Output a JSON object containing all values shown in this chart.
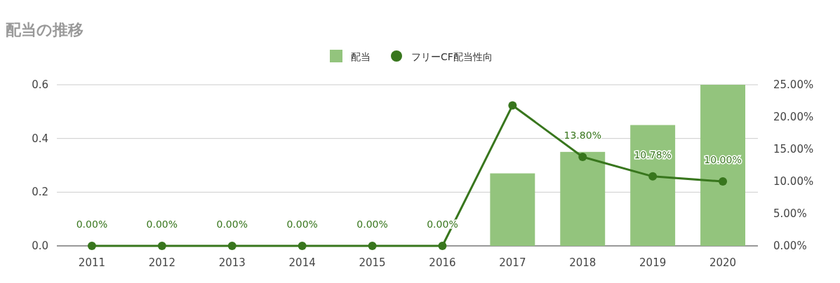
{
  "chart_data": {
    "type": "bar",
    "title": "配当の推移",
    "categories": [
      "2011",
      "2012",
      "2013",
      "2014",
      "2015",
      "2016",
      "2017",
      "2018",
      "2019",
      "2020"
    ],
    "series": [
      {
        "name": "配当",
        "color": "#93c47d",
        "values": [
          0,
          0,
          0,
          0,
          0,
          0,
          0.27,
          0.35,
          0.45,
          0.6
        ]
      },
      {
        "name": "フリーCF配当性向",
        "type": "line",
        "axis": "y2",
        "color": "#38761d",
        "marker": "circle",
        "values": [
          0,
          0,
          0,
          0,
          0,
          0,
          21.8,
          13.8,
          10.78,
          10.0
        ],
        "value_labels": [
          "0.00%",
          "0.00%",
          "0.00%",
          "0.00%",
          "0.00%",
          "0.00%",
          null,
          "13.80%",
          "10.78%",
          "10.00%"
        ]
      }
    ],
    "ylim": [
      0,
      0.6
    ],
    "yticks": [
      {
        "value": 0,
        "label": "0.0"
      },
      {
        "value": 0.2,
        "label": "0.2"
      },
      {
        "value": 0.4,
        "label": "0.4"
      },
      {
        "value": 0.6,
        "label": "0.6"
      }
    ],
    "y2lim": [
      0,
      25
    ],
    "y2ticks": [
      {
        "value": 0,
        "label": "0.00%"
      },
      {
        "value": 5,
        "label": "5.00%"
      },
      {
        "value": 10,
        "label": "10.00%"
      },
      {
        "value": 15,
        "label": "15.00%"
      },
      {
        "value": 20,
        "label": "20.00%"
      },
      {
        "value": 25,
        "label": "25.00%"
      }
    ],
    "grid": "y",
    "legend": "top"
  }
}
